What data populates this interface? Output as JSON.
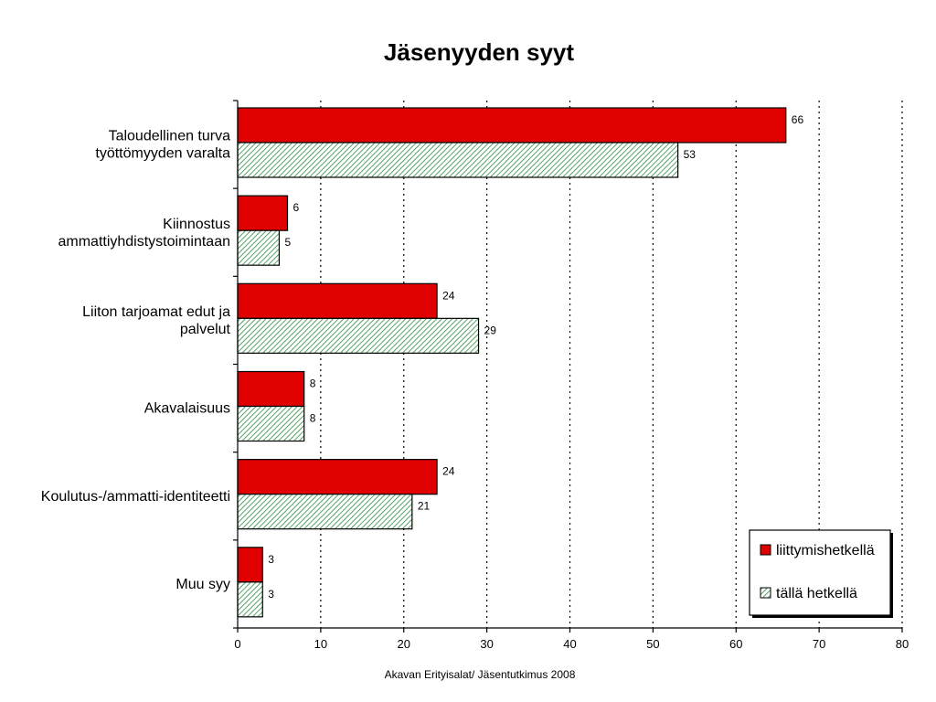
{
  "chart_data": {
    "type": "bar",
    "orientation": "horizontal",
    "title": "Jäsenyyden syyt",
    "categories": [
      [
        "Taloudellinen turva",
        "työttömyyden varalta"
      ],
      [
        "Kiinnostus",
        "ammattiyhdistystoimintaan"
      ],
      [
        "Liiton tarjoamat edut ja",
        "palvelut"
      ],
      [
        "Akavalaisuus"
      ],
      [
        "Koulutus-/ammatti-identiteetti"
      ],
      [
        "Muu syy"
      ]
    ],
    "series": [
      {
        "name": "liittymishetkellä",
        "color": "#e00000",
        "fill": "solid",
        "values": [
          66,
          6,
          24,
          8,
          24,
          3
        ]
      },
      {
        "name": "tällä hetkellä",
        "color": "#2e8b3e",
        "fill": "hatched",
        "values": [
          53,
          5,
          29,
          8,
          21,
          3
        ]
      }
    ],
    "xlim": [
      0,
      80
    ],
    "xticks": [
      0,
      10,
      20,
      30,
      40,
      50,
      60,
      70,
      80
    ],
    "grid": "vertical-dotted",
    "legend_position": "bottom-right",
    "data_labels": true
  },
  "footer": "Akavan Erityisalat/ Jäsentutkimus 2008"
}
